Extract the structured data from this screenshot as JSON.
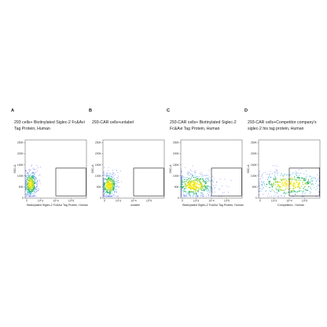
{
  "chart_data": [
    {
      "panel": "A",
      "type": "scatter",
      "title": "293 cells+ Biotinylated Siglec-2 Fc&Avi Tag Protein, Human",
      "xlabel": "Biotinylated Siglec-2 Fc&Avi Tag Protein, Human",
      "ylabel": "SSC-A",
      "yticks": [
        "0",
        "50K",
        "100K",
        "150K",
        "200K",
        "250K"
      ],
      "xticks": [
        "0",
        "10^3",
        "10^4",
        "10^5"
      ],
      "gate": {
        "x": [
          10000,
          1000000
        ],
        "y": [
          10000,
          135000
        ]
      },
      "population": {
        "cx": 0.09,
        "cy": 0.24,
        "sx": 0.06,
        "sy": 0.12,
        "n": 420
      }
    },
    {
      "panel": "B",
      "type": "scatter",
      "title": "293-CAR cells+unlabel",
      "xlabel": "unlabel",
      "ylabel": "SSC-A",
      "yticks": [
        "0",
        "50K",
        "100K",
        "150K",
        "200K",
        "250K"
      ],
      "xticks": [
        "0",
        "10^3",
        "10^4",
        "10^5"
      ],
      "gate": {
        "x": [
          10000,
          1000000
        ],
        "y": [
          10000,
          135000
        ]
      },
      "population": {
        "cx": 0.1,
        "cy": 0.22,
        "sx": 0.08,
        "sy": 0.12,
        "n": 380
      }
    },
    {
      "panel": "C",
      "type": "scatter",
      "title": "293-CAR cells+ Biotinylated Siglec-2 Fc&Avi Tag Protein, Human",
      "xlabel": "Biotinylated Siglec-2 Fc&Avi Tag Protein, Human",
      "ylabel": "SSC-A",
      "yticks": [
        "0",
        "50K",
        "100K",
        "150K",
        "200K",
        "250K"
      ],
      "xticks": [
        "0",
        "10^3",
        "10^4",
        "10^5"
      ],
      "gate": {
        "x": [
          10000,
          1000000
        ],
        "y": [
          10000,
          135000
        ]
      },
      "population": {
        "cx": 0.22,
        "cy": 0.22,
        "sx": 0.2,
        "sy": 0.12,
        "n": 500
      }
    },
    {
      "panel": "D",
      "type": "scatter",
      "title": "293-CAR cells+Competitor company's siglec-2 his tag protein, Human",
      "xlabel": "Competitors , Human",
      "ylabel": "SSC-A",
      "yticks": [
        "0",
        "50K",
        "100K",
        "150K",
        "200K",
        "250K"
      ],
      "xticks": [
        "0",
        "10^3",
        "10^4",
        "10^5"
      ],
      "gate": {
        "x": [
          10000,
          1000000
        ],
        "y": [
          10000,
          135000
        ]
      },
      "population": {
        "cx": 0.5,
        "cy": 0.24,
        "sx": 0.32,
        "sy": 0.13,
        "n": 420
      }
    }
  ],
  "colors": {
    "low": "#7f7fff",
    "mid": "#2bb673",
    "high": "#f2e600",
    "gate": "#111111",
    "axis": "#444444"
  }
}
